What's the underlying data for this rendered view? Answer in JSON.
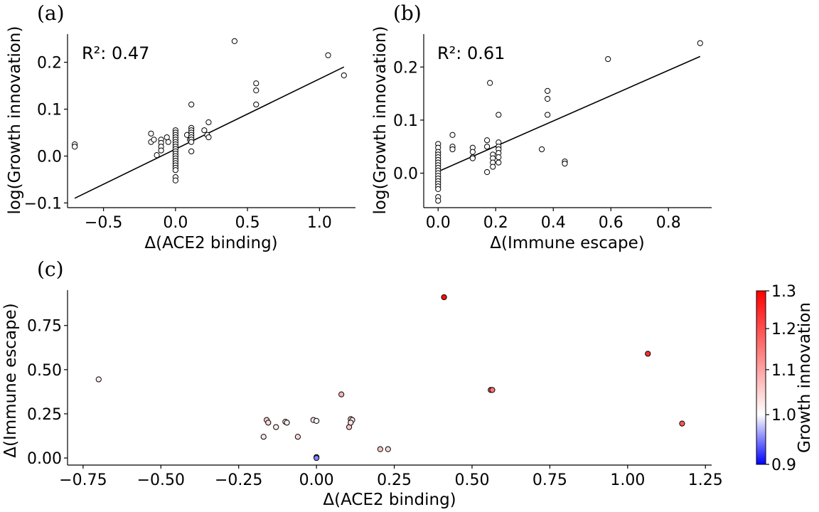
{
  "chart_data": [
    {
      "id": "a",
      "type": "scatter",
      "panel_label": "(a)",
      "annotation": "R²: 0.47",
      "xlabel": "Δ(ACE2 binding)",
      "ylabel": "log(Growth innovation)",
      "xlim": [
        -0.75,
        1.25
      ],
      "ylim": [
        -0.11,
        0.26
      ],
      "xticks": [
        -0.5,
        0.0,
        0.5,
        1.0
      ],
      "xtick_labels": [
        "−0.5",
        "0.0",
        "0.5",
        "1.0"
      ],
      "yticks": [
        -0.1,
        0.0,
        0.1,
        0.2
      ],
      "ytick_labels": [
        "−0.1",
        "0.0",
        "0.1",
        "0.2"
      ],
      "fit_line": {
        "x": [
          -0.7,
          1.17
        ],
        "y": [
          -0.09,
          0.19
        ]
      },
      "points": [
        [
          -0.7,
          0.025
        ],
        [
          -0.7,
          0.02
        ],
        [
          -0.17,
          0.048
        ],
        [
          -0.17,
          0.03
        ],
        [
          -0.15,
          0.035
        ],
        [
          -0.13,
          0.002
        ],
        [
          -0.1,
          0.035
        ],
        [
          -0.1,
          0.028
        ],
        [
          -0.1,
          0.02
        ],
        [
          -0.1,
          0.012
        ],
        [
          -0.06,
          0.04
        ],
        [
          -0.05,
          0.03
        ],
        [
          0.0,
          0.055
        ],
        [
          0.0,
          0.05
        ],
        [
          0.0,
          0.045
        ],
        [
          0.0,
          0.04
        ],
        [
          0.0,
          0.035
        ],
        [
          0.0,
          0.03
        ],
        [
          0.0,
          0.025
        ],
        [
          0.0,
          0.02
        ],
        [
          0.0,
          0.015
        ],
        [
          0.0,
          0.01
        ],
        [
          0.0,
          0.005
        ],
        [
          0.0,
          0.0
        ],
        [
          0.0,
          -0.005
        ],
        [
          0.0,
          -0.01
        ],
        [
          0.0,
          -0.015
        ],
        [
          0.0,
          -0.02
        ],
        [
          0.0,
          -0.025
        ],
        [
          0.0,
          -0.03
        ],
        [
          0.0,
          -0.045
        ],
        [
          0.0,
          -0.052
        ],
        [
          0.08,
          0.045
        ],
        [
          0.1,
          0.035
        ],
        [
          0.11,
          0.06
        ],
        [
          0.11,
          0.055
        ],
        [
          0.11,
          0.05
        ],
        [
          0.11,
          0.045
        ],
        [
          0.11,
          0.04
        ],
        [
          0.11,
          0.035
        ],
        [
          0.11,
          0.03
        ],
        [
          0.11,
          0.01
        ],
        [
          0.11,
          0.11
        ],
        [
          0.2,
          0.055
        ],
        [
          0.22,
          0.045
        ],
        [
          0.23,
          0.04
        ],
        [
          0.23,
          0.072
        ],
        [
          0.41,
          0.245
        ],
        [
          0.56,
          0.155
        ],
        [
          0.56,
          0.14
        ],
        [
          0.56,
          0.11
        ],
        [
          1.06,
          0.215
        ],
        [
          1.17,
          0.172
        ]
      ]
    },
    {
      "id": "b",
      "type": "scatter",
      "panel_label": "(b)",
      "annotation": "R²: 0.61",
      "xlabel": "Δ(Immune escape)",
      "ylabel": "log(Growth innovation)",
      "xlim": [
        -0.05,
        0.95
      ],
      "ylim": [
        -0.065,
        0.262
      ],
      "xticks": [
        0.0,
        0.2,
        0.4,
        0.6,
        0.8
      ],
      "xtick_labels": [
        "0.0",
        "0.2",
        "0.4",
        "0.6",
        "0.8"
      ],
      "yticks": [
        0.0,
        0.1,
        0.2
      ],
      "ytick_labels": [
        "0.0",
        "0.1",
        "0.2"
      ],
      "fit_line": {
        "x": [
          0.0,
          0.91
        ],
        "y": [
          0.003,
          0.22
        ]
      },
      "points": [
        [
          0.0,
          0.055
        ],
        [
          0.0,
          0.048
        ],
        [
          0.0,
          0.04
        ],
        [
          0.0,
          0.035
        ],
        [
          0.0,
          0.03
        ],
        [
          0.0,
          0.025
        ],
        [
          0.0,
          0.02
        ],
        [
          0.0,
          0.015
        ],
        [
          0.0,
          0.01
        ],
        [
          0.0,
          0.005
        ],
        [
          0.0,
          0.0
        ],
        [
          0.0,
          -0.005
        ],
        [
          0.0,
          -0.01
        ],
        [
          0.0,
          -0.015
        ],
        [
          0.0,
          -0.02
        ],
        [
          0.0,
          -0.025
        ],
        [
          0.0,
          -0.03
        ],
        [
          0.0,
          -0.045
        ],
        [
          0.0,
          -0.052
        ],
        [
          0.05,
          0.072
        ],
        [
          0.05,
          0.05
        ],
        [
          0.05,
          0.045
        ],
        [
          0.12,
          0.048
        ],
        [
          0.12,
          0.04
        ],
        [
          0.12,
          0.03
        ],
        [
          0.12,
          0.028
        ],
        [
          0.17,
          0.062
        ],
        [
          0.17,
          0.05
        ],
        [
          0.17,
          0.002
        ],
        [
          0.18,
          0.17
        ],
        [
          0.19,
          0.035
        ],
        [
          0.19,
          0.028
        ],
        [
          0.19,
          0.02
        ],
        [
          0.19,
          0.012
        ],
        [
          0.21,
          0.058
        ],
        [
          0.21,
          0.05
        ],
        [
          0.21,
          0.045
        ],
        [
          0.21,
          0.038
        ],
        [
          0.21,
          0.03
        ],
        [
          0.21,
          0.02
        ],
        [
          0.21,
          0.11
        ],
        [
          0.36,
          0.045
        ],
        [
          0.38,
          0.155
        ],
        [
          0.38,
          0.14
        ],
        [
          0.38,
          0.11
        ],
        [
          0.44,
          0.022
        ],
        [
          0.44,
          0.018
        ],
        [
          0.59,
          0.215
        ],
        [
          0.91,
          0.245
        ]
      ]
    },
    {
      "id": "c",
      "type": "scatter",
      "panel_label": "(c)",
      "xlabel": "Δ(ACE2 binding)",
      "ylabel": "Δ(Immune escape)",
      "xlim": [
        -0.8,
        1.27
      ],
      "ylim": [
        -0.04,
        0.95
      ],
      "xticks": [
        -0.75,
        -0.5,
        -0.25,
        0.0,
        0.25,
        0.5,
        0.75,
        1.0,
        1.25
      ],
      "xtick_labels": [
        "−0.75",
        "−0.50",
        "−0.25",
        "0.00",
        "0.25",
        "0.50",
        "0.75",
        "1.00",
        "1.25"
      ],
      "yticks": [
        0.0,
        0.25,
        0.5,
        0.75
      ],
      "ytick_labels": [
        "0.00",
        "0.25",
        "0.50",
        "0.75"
      ],
      "colorbar": {
        "label": "Growth innovation",
        "min": 0.9,
        "max": 1.3,
        "center": 1.0,
        "scale": "log",
        "colors": [
          "#0000ff",
          "#ffffff",
          "#ff0000"
        ],
        "ticks": [
          0.9,
          1.0,
          1.1,
          1.2,
          1.3
        ],
        "tick_labels": [
          "0.9",
          "1.0",
          "1.1",
          "1.2",
          "1.3"
        ]
      },
      "points": [
        {
          "x": -0.7,
          "y": 0.445,
          "c": 1.02
        },
        {
          "x": -0.17,
          "y": 0.12,
          "c": 1.03
        },
        {
          "x": -0.16,
          "y": 0.215,
          "c": 1.05
        },
        {
          "x": -0.155,
          "y": 0.2,
          "c": 1.04
        },
        {
          "x": -0.13,
          "y": 0.175,
          "c": 1.02
        },
        {
          "x": -0.1,
          "y": 0.205,
          "c": 1.03
        },
        {
          "x": -0.095,
          "y": 0.2,
          "c": 1.02
        },
        {
          "x": -0.06,
          "y": 0.12,
          "c": 1.04
        },
        {
          "x": -0.01,
          "y": 0.215,
          "c": 1.03
        },
        {
          "x": 0.0,
          "y": 0.21,
          "c": 1.0
        },
        {
          "x": 0.0,
          "y": 0.005,
          "c": 0.97
        },
        {
          "x": 0.0,
          "y": 0.0,
          "c": 0.95
        },
        {
          "x": 0.08,
          "y": 0.36,
          "c": 1.08
        },
        {
          "x": 0.105,
          "y": 0.175,
          "c": 1.06
        },
        {
          "x": 0.11,
          "y": 0.22,
          "c": 1.04
        },
        {
          "x": 0.115,
          "y": 0.215,
          "c": 1.03
        },
        {
          "x": 0.11,
          "y": 0.2,
          "c": 1.03
        },
        {
          "x": 0.205,
          "y": 0.05,
          "c": 1.06
        },
        {
          "x": 0.23,
          "y": 0.05,
          "c": 1.04
        },
        {
          "x": 0.41,
          "y": 0.91,
          "c": 1.28
        },
        {
          "x": 0.56,
          "y": 0.385,
          "c": 1.17
        },
        {
          "x": 0.565,
          "y": 0.385,
          "c": 1.15
        },
        {
          "x": 1.065,
          "y": 0.59,
          "c": 1.24
        },
        {
          "x": 1.175,
          "y": 0.195,
          "c": 1.19
        }
      ]
    }
  ]
}
